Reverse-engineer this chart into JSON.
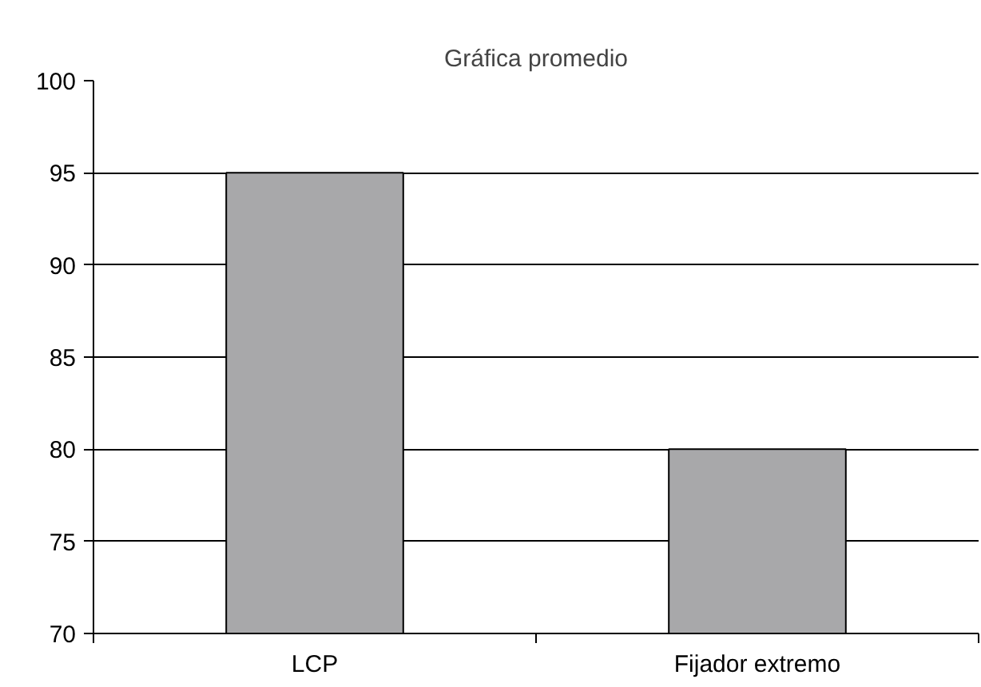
{
  "chart_data": {
    "type": "bar",
    "title": "Gráfica promedio",
    "categories": [
      "LCP",
      "Fijador extremo"
    ],
    "values": [
      95,
      80
    ],
    "color": "#a8a8aa",
    "ylim": [
      70,
      100
    ],
    "yticks": [
      70,
      75,
      80,
      85,
      90,
      95,
      100
    ],
    "grid": "y"
  }
}
